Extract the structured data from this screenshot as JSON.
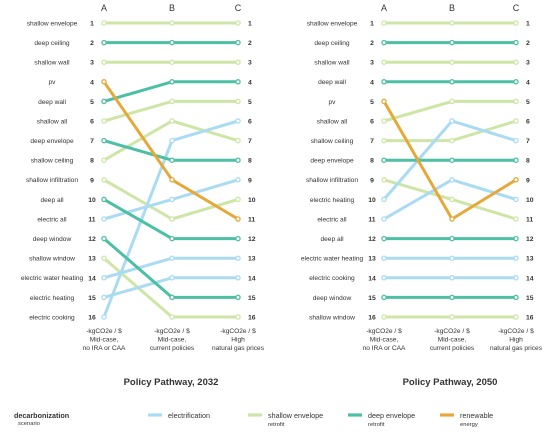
{
  "palette": {
    "electrification": "#a9dbf2",
    "shallow envelope": "#cde6a6",
    "deep envelope": "#4cbfa4",
    "renewable": "#e5a93a"
  },
  "rank_labels": [
    "1",
    "2",
    "3",
    "4",
    "5",
    "6",
    "7",
    "8",
    "9",
    "10",
    "11",
    "12",
    "13",
    "14",
    "15",
    "16"
  ],
  "legend": {
    "title": "decarbonization",
    "subtitle": "scenario",
    "items": [
      {
        "key": "electrification",
        "label": "electrification",
        "sub": ""
      },
      {
        "key": "shallow envelope",
        "label": "shallow envelope",
        "sub": "retrofit"
      },
      {
        "key": "deep envelope",
        "label": "deep envelope",
        "sub": "retrofit"
      },
      {
        "key": "renewable",
        "label": "renewable",
        "sub": "energy"
      }
    ]
  },
  "chart_data": [
    {
      "type": "slope",
      "title": "Policy Pathway, 2032",
      "columns": [
        "A",
        "B",
        "C"
      ],
      "column_labels": [
        [
          "-kgCO2e / $",
          "Mid-case,",
          "no IRA or CAA"
        ],
        [
          "-kgCO2e / $",
          "Mid-case,",
          "current policies"
        ],
        [
          "-kgCO2e / $",
          "High",
          "natural gas prices"
        ]
      ],
      "series": [
        {
          "name": "shallow envelope",
          "category": "shallow envelope",
          "ranks": [
            1,
            1,
            1
          ]
        },
        {
          "name": "deep ceiling",
          "category": "deep envelope",
          "ranks": [
            2,
            2,
            2
          ]
        },
        {
          "name": "shallow wall",
          "category": "shallow envelope",
          "ranks": [
            3,
            3,
            3
          ]
        },
        {
          "name": "pv",
          "category": "renewable",
          "ranks": [
            4,
            9,
            11
          ]
        },
        {
          "name": "deep wall",
          "category": "deep envelope",
          "ranks": [
            5,
            4,
            4
          ]
        },
        {
          "name": "shallow all",
          "category": "shallow envelope",
          "ranks": [
            6,
            5,
            5
          ]
        },
        {
          "name": "deep envelope",
          "category": "deep envelope",
          "ranks": [
            7,
            8,
            8
          ]
        },
        {
          "name": "shallow ceiling",
          "category": "shallow envelope",
          "ranks": [
            8,
            6,
            7
          ]
        },
        {
          "name": "shallow infiltration",
          "category": "shallow envelope",
          "ranks": [
            9,
            11,
            10
          ]
        },
        {
          "name": "deep all",
          "category": "deep envelope",
          "ranks": [
            10,
            12,
            12
          ]
        },
        {
          "name": "electric all",
          "category": "electrification",
          "ranks": [
            11,
            10,
            9
          ]
        },
        {
          "name": "deep window",
          "category": "deep envelope",
          "ranks": [
            12,
            15,
            15
          ]
        },
        {
          "name": "shallow window",
          "category": "shallow envelope",
          "ranks": [
            13,
            16,
            16
          ]
        },
        {
          "name": "electric water heating",
          "category": "electrification",
          "ranks": [
            14,
            13,
            13
          ]
        },
        {
          "name": "electric heating",
          "category": "electrification",
          "ranks": [
            15,
            14,
            14
          ]
        },
        {
          "name": "electric cooking",
          "category": "electrification",
          "ranks": [
            16,
            7,
            6
          ]
        }
      ]
    },
    {
      "type": "slope",
      "title": "Policy Pathway, 2050",
      "columns": [
        "A",
        "B",
        "C"
      ],
      "column_labels": [
        [
          "-kgCO2e / $",
          "Mid-case,",
          "no IRA or CAA"
        ],
        [
          "-kgCO2e / $",
          "Mid-case,",
          "current policies"
        ],
        [
          "-kgCO2e / $",
          "High",
          "natural gas prices"
        ]
      ],
      "series": [
        {
          "name": "shallow envelope",
          "category": "shallow envelope",
          "ranks": [
            1,
            1,
            1
          ]
        },
        {
          "name": "deep ceiling",
          "category": "deep envelope",
          "ranks": [
            2,
            2,
            2
          ]
        },
        {
          "name": "shallow wall",
          "category": "shallow envelope",
          "ranks": [
            3,
            3,
            3
          ]
        },
        {
          "name": "deep wall",
          "category": "deep envelope",
          "ranks": [
            4,
            4,
            4
          ]
        },
        {
          "name": "pv",
          "category": "renewable",
          "ranks": [
            5,
            11,
            9
          ]
        },
        {
          "name": "shallow all",
          "category": "shallow envelope",
          "ranks": [
            6,
            5,
            5
          ]
        },
        {
          "name": "shallow ceiling",
          "category": "shallow envelope",
          "ranks": [
            7,
            7,
            6
          ]
        },
        {
          "name": "deep envelope",
          "category": "deep envelope",
          "ranks": [
            8,
            8,
            8
          ]
        },
        {
          "name": "shallow infiltration",
          "category": "shallow envelope",
          "ranks": [
            9,
            10,
            11
          ]
        },
        {
          "name": "electric heating",
          "category": "electrification",
          "ranks": [
            10,
            6,
            7
          ]
        },
        {
          "name": "electric all",
          "category": "electrification",
          "ranks": [
            11,
            9,
            10
          ]
        },
        {
          "name": "deep all",
          "category": "deep envelope",
          "ranks": [
            12,
            12,
            12
          ]
        },
        {
          "name": "electric water heating",
          "category": "electrification",
          "ranks": [
            13,
            13,
            13
          ]
        },
        {
          "name": "electric cooking",
          "category": "electrification",
          "ranks": [
            14,
            14,
            14
          ]
        },
        {
          "name": "deep window",
          "category": "deep envelope",
          "ranks": [
            15,
            15,
            15
          ]
        },
        {
          "name": "shallow window",
          "category": "shallow envelope",
          "ranks": [
            16,
            16,
            16
          ]
        }
      ]
    }
  ]
}
